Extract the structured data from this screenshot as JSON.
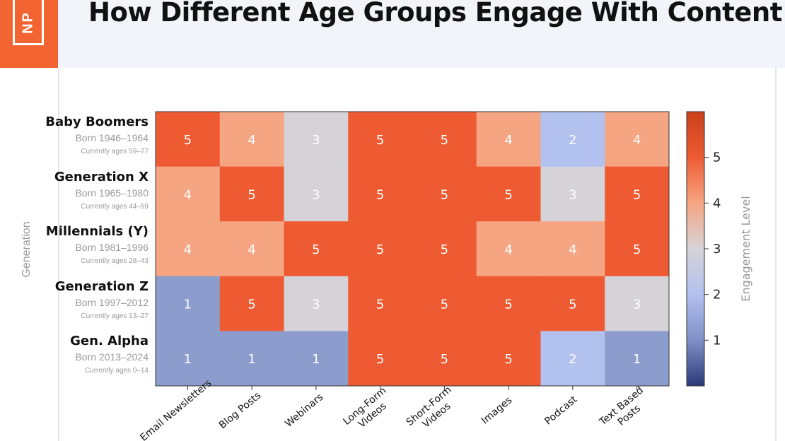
{
  "header": {
    "title": "How Different Age Groups Engage With Content",
    "logo_text": "NP"
  },
  "colors": {
    "accent": "#f26532",
    "header_bg": "#f1f5f9"
  },
  "chart_data": {
    "type": "heatmap",
    "title": "How Different Age Groups Engage With Content",
    "ylabel": "Generation",
    "colorbar_label": "Engagement Level",
    "colorbar_ticks": [
      1,
      2,
      3,
      4,
      5
    ],
    "value_range": [
      0,
      6
    ],
    "categories": [
      "Email Newsletters",
      "Blog Posts",
      "Webinars",
      "Long-Form Videos",
      "Short-Form Videos",
      "Images",
      "Podcast",
      "Text Based Posts"
    ],
    "rows": [
      {
        "name": "Baby Boomers",
        "born": "Born 1946–1964",
        "ages": "Currently ages 59–77",
        "values": [
          5,
          4,
          3,
          5,
          5,
          4,
          2,
          4
        ]
      },
      {
        "name": "Generation X",
        "born": "Born 1965–1980",
        "ages": "Currently ages 44–59",
        "values": [
          4,
          5,
          3,
          5,
          5,
          5,
          3,
          5
        ]
      },
      {
        "name": "Millennials (Y)",
        "born": "Born 1981–1996",
        "ages": "Currently ages 28–43",
        "values": [
          4,
          4,
          5,
          5,
          5,
          4,
          4,
          5
        ]
      },
      {
        "name": "Generation Z",
        "born": "Born 1997–2012",
        "ages": "Currently ages 13–27",
        "values": [
          1,
          5,
          3,
          5,
          5,
          5,
          5,
          3
        ]
      },
      {
        "name": "Gen. Alpha",
        "born": "Born 2013–2024",
        "ages": "Currently ages 0–14",
        "values": [
          1,
          1,
          1,
          5,
          5,
          5,
          2,
          1
        ]
      }
    ]
  }
}
